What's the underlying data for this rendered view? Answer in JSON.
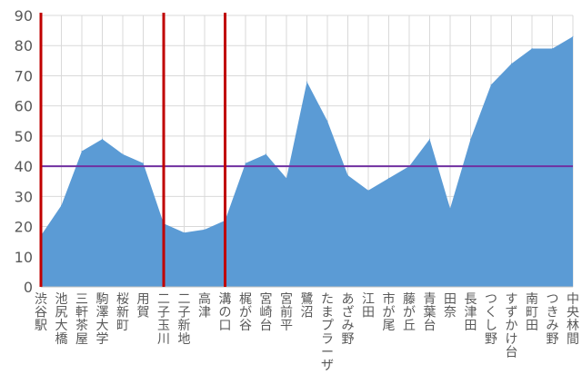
{
  "chart_data": {
    "type": "area",
    "title": "",
    "xlabel": "",
    "ylabel": "",
    "ylim": [
      0,
      90
    ],
    "y_ticks": [
      0,
      10,
      20,
      30,
      40,
      50,
      60,
      70,
      80,
      90
    ],
    "grid": true,
    "legend": "none",
    "categories": [
      "渋谷駅",
      "池尻大橋",
      "三軒茶屋",
      "駒澤大学",
      "桜新町",
      "用賀",
      "二子玉川",
      "二子新地",
      "高津",
      "溝の口",
      "梶が谷",
      "宮崎台",
      "宮前平",
      "鷺沼",
      "たまプラーザ",
      "あざみ野",
      "江田",
      "市が尾",
      "藤が丘",
      "青葉台",
      "田奈",
      "長津田",
      "つくし野",
      "すずかけ台",
      "南町田",
      "つきみ野",
      "中央林間"
    ],
    "series": [
      {
        "values": [
          17,
          27,
          45,
          49,
          44,
          41,
          21,
          18,
          19,
          22,
          41,
          44,
          36,
          68,
          55,
          37,
          32,
          36,
          40,
          49,
          26,
          49,
          67,
          74,
          79,
          79,
          83
        ]
      }
    ],
    "reference_line_y": 40,
    "vertical_markers": [
      "渋谷駅",
      "二子玉川",
      "溝の口"
    ],
    "colors": {
      "area": "#5b9bd5",
      "reference_line": "#7030a0",
      "markers": "#c00000",
      "grid": "#d9d9d9",
      "text": "#595959"
    }
  }
}
